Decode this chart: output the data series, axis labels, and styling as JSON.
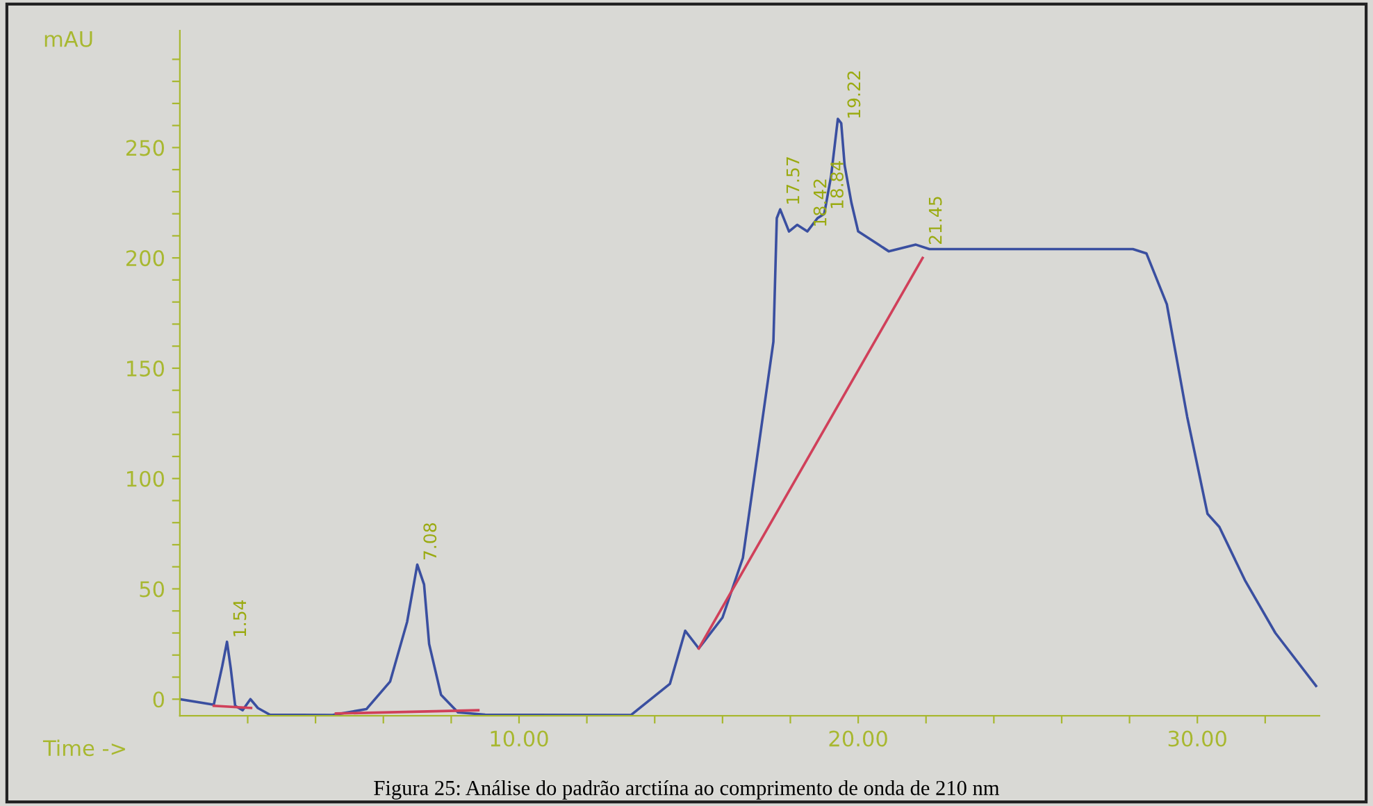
{
  "chart_data": {
    "type": "line",
    "xlabel": "Time ->",
    "ylabel": "mAU",
    "xlim": [
      0,
      33.6
    ],
    "ylim": [
      -7.5,
      303
    ],
    "xticks": [
      {
        "value": 2,
        "label": null
      },
      {
        "value": 4,
        "label": null
      },
      {
        "value": 6,
        "label": null
      },
      {
        "value": 8,
        "label": null
      },
      {
        "value": 10,
        "label": "10.00"
      },
      {
        "value": 12,
        "label": null
      },
      {
        "value": 14,
        "label": null
      },
      {
        "value": 16,
        "label": null
      },
      {
        "value": 18,
        "label": null
      },
      {
        "value": 20,
        "label": "20.00"
      },
      {
        "value": 22,
        "label": null
      },
      {
        "value": 24,
        "label": null
      },
      {
        "value": 26,
        "label": null
      },
      {
        "value": 28,
        "label": null
      },
      {
        "value": 30,
        "label": "30.00"
      },
      {
        "value": 32,
        "label": null
      }
    ],
    "yticks": [
      0,
      {
        "value": 10,
        "label": null
      },
      {
        "value": 20,
        "label": null
      },
      {
        "value": 30,
        "label": null
      },
      {
        "value": 40,
        "label": null
      },
      50,
      {
        "value": 60,
        "label": null
      },
      {
        "value": 70,
        "label": null
      },
      {
        "value": 80,
        "label": null
      },
      {
        "value": 90,
        "label": null
      },
      100,
      {
        "value": 110,
        "label": null
      },
      {
        "value": 120,
        "label": null
      },
      {
        "value": 130,
        "label": null
      },
      {
        "value": 140,
        "label": null
      },
      150,
      {
        "value": 160,
        "label": null
      },
      {
        "value": 170,
        "label": null
      },
      {
        "value": 180,
        "label": null
      },
      {
        "value": 190,
        "label": null
      },
      200,
      {
        "value": 210,
        "label": null
      },
      {
        "value": 220,
        "label": null
      },
      {
        "value": 230,
        "label": null
      },
      {
        "value": 240,
        "label": null
      },
      250,
      {
        "value": 260,
        "label": null
      },
      {
        "value": 270,
        "label": null
      },
      {
        "value": 280,
        "label": null
      },
      {
        "value": 290,
        "label": null
      }
    ],
    "grid": false,
    "legend": false,
    "marker": "none",
    "line_style": "solid",
    "series": [
      {
        "color": "#3a4fa0",
        "x": [
          0,
          1.0,
          1.25,
          1.39,
          1.5,
          1.63,
          1.85,
          2.08,
          2.3,
          2.65,
          4.5,
          5.5,
          6.2,
          6.7,
          7.0,
          7.2,
          7.35,
          7.7,
          8.2,
          9.0,
          13.3,
          14.45,
          14.9,
          15.3,
          16.0,
          16.6,
          17.5,
          17.6,
          17.7,
          17.96,
          18.2,
          18.5,
          18.8,
          19.0,
          19.2,
          19.4,
          19.5,
          19.6,
          19.8,
          20.0,
          20.6,
          20.9,
          21.7,
          22.1,
          25.0,
          28.1,
          28.5,
          29.1,
          29.7,
          30.3,
          30.65,
          31.4,
          32.3,
          33.5
        ],
        "values": [
          0,
          -2.5,
          15,
          26,
          14,
          -3,
          -5,
          0,
          -4,
          -7,
          -7.2,
          -4.5,
          8,
          35,
          61,
          52,
          25,
          2,
          -6,
          -7,
          -7.2,
          7,
          31,
          23,
          37,
          64,
          162,
          218,
          222,
          212,
          215,
          212,
          218,
          220,
          237,
          263,
          261,
          242,
          225,
          212,
          206,
          203,
          206,
          204,
          204,
          204,
          202,
          179,
          128,
          84,
          78,
          54,
          30,
          6
        ]
      },
      {
        "color": "#d0405a",
        "x": [
          1.0,
          2.1
        ],
        "values": [
          -3,
          -4
        ]
      },
      {
        "color": "#d0405a",
        "x": [
          4.6,
          8.8
        ],
        "values": [
          -6.5,
          -5
        ]
      },
      {
        "color": "#d0405a",
        "x": [
          15.3,
          21.9
        ],
        "values": [
          23,
          200
        ]
      }
    ],
    "annotations": [
      {
        "text": "1.54",
        "x": 1.39,
        "y": 26
      },
      {
        "text": "7.08",
        "x": 7.0,
        "y": 61
      },
      {
        "text": "17.57",
        "x": 17.7,
        "y": 222
      },
      {
        "text": "18.42",
        "x": 18.5,
        "y": 212
      },
      {
        "text": "18.84",
        "x": 19.0,
        "y": 220
      },
      {
        "text": "19.22",
        "x": 19.5,
        "y": 261
      },
      {
        "text": "21.45",
        "x": 21.9,
        "y": 204
      },
      "Figura 25: Análise do padrão arctiína ao comprimento de onda de 210 nm"
    ]
  }
}
